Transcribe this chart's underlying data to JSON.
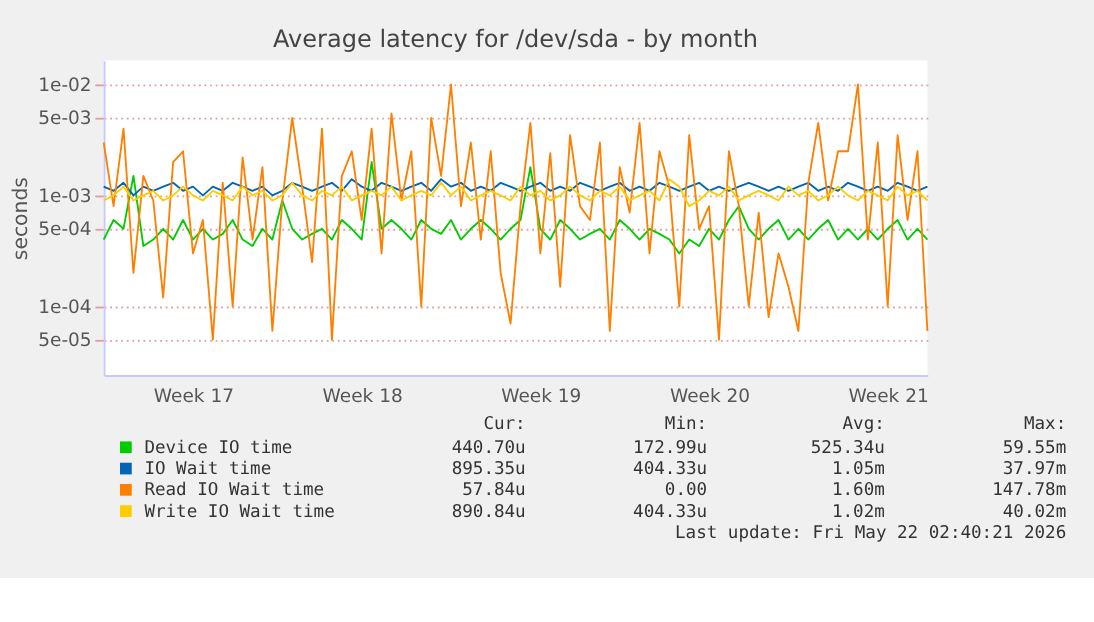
{
  "chart_data": {
    "type": "line",
    "title": "Average latency for /dev/sda - by month",
    "ylabel": "seconds",
    "log": true,
    "grid": "y",
    "legend": "bottom",
    "categories": [
      null,
      null,
      null,
      null,
      null,
      null,
      null,
      null,
      null,
      "Week 17",
      null,
      null,
      null,
      null,
      null,
      null,
      null,
      null,
      null,
      null,
      null,
      null,
      null,
      null,
      null,
      null,
      "Week 18",
      null,
      null,
      null,
      null,
      null,
      null,
      null,
      null,
      null,
      null,
      null,
      null,
      null,
      null,
      null,
      null,
      null,
      "Week 19",
      null,
      null,
      null,
      null,
      null,
      null,
      null,
      null,
      null,
      null,
      null,
      null,
      null,
      null,
      null,
      null,
      "Week 20",
      null,
      null,
      null,
      null,
      null,
      null,
      null,
      null,
      null,
      null,
      null,
      null,
      null,
      null,
      null,
      null,
      null,
      "Week 21",
      null,
      null,
      null,
      null
    ],
    "ylim": [
      2.4e-05,
      0.0165
    ],
    "yticks": [
      {
        "value": 5e-05,
        "label": "5e-05"
      },
      {
        "value": 0.0001,
        "label": "1e-04"
      },
      {
        "value": 0.0005,
        "label": "5e-04"
      },
      {
        "value": 0.001,
        "label": "1e-03"
      },
      {
        "value": 0.005,
        "label": "5e-03"
      },
      {
        "value": 0.01,
        "label": "1e-02"
      }
    ],
    "series": [
      {
        "name": "Device IO time",
        "color": "#00cc00",
        "values": [
          0.0004,
          0.0006,
          0.0005,
          0.0015,
          0.00035,
          0.0004,
          0.0005,
          0.0004,
          0.0006,
          0.0004,
          0.0005,
          0.0004,
          0.00045,
          0.0006,
          0.0004,
          0.00035,
          0.0005,
          0.0004,
          0.0009,
          0.0005,
          0.0004,
          0.00045,
          0.0005,
          0.0004,
          0.0006,
          0.0005,
          0.0004,
          0.002,
          0.0005,
          0.0006,
          0.0005,
          0.0004,
          0.0006,
          0.0005,
          0.00045,
          0.0006,
          0.0004,
          0.0005,
          0.0006,
          0.0005,
          0.0004,
          0.0005,
          0.0006,
          0.0018,
          0.0005,
          0.0004,
          0.0006,
          0.0005,
          0.0004,
          0.00045,
          0.0005,
          0.0004,
          0.0006,
          0.0005,
          0.0004,
          0.0005,
          0.00045,
          0.0004,
          0.0003,
          0.0004,
          0.00035,
          0.0005,
          0.0004,
          0.0006,
          0.0008,
          0.0005,
          0.0004,
          0.0005,
          0.0006,
          0.0004,
          0.0005,
          0.0004,
          0.0005,
          0.0006,
          0.0004,
          0.0005,
          0.0004,
          0.0005,
          0.0004,
          0.0005,
          0.0006,
          0.0004,
          0.0005,
          0.0004
        ]
      },
      {
        "name": "IO Wait time",
        "color": "#0066b3",
        "values": [
          0.0012,
          0.0011,
          0.0013,
          0.001,
          0.0012,
          0.0011,
          0.0012,
          0.0013,
          0.0011,
          0.0012,
          0.001,
          0.0012,
          0.0011,
          0.0013,
          0.0012,
          0.0011,
          0.0012,
          0.001,
          0.0011,
          0.0013,
          0.0012,
          0.0011,
          0.0012,
          0.0013,
          0.0011,
          0.0014,
          0.0012,
          0.0011,
          0.0013,
          0.0012,
          0.0011,
          0.0012,
          0.0013,
          0.0011,
          0.0014,
          0.0012,
          0.0013,
          0.0011,
          0.0012,
          0.0011,
          0.0013,
          0.0012,
          0.0011,
          0.0012,
          0.0013,
          0.0011,
          0.0012,
          0.0011,
          0.0013,
          0.0012,
          0.0011,
          0.0012,
          0.0013,
          0.0011,
          0.0012,
          0.0011,
          0.0013,
          0.0012,
          0.0011,
          0.0012,
          0.0013,
          0.0011,
          0.0012,
          0.0011,
          0.0012,
          0.0013,
          0.0012,
          0.0011,
          0.0012,
          0.0011,
          0.0012,
          0.0013,
          0.0011,
          0.0012,
          0.0011,
          0.0013,
          0.0012,
          0.0011,
          0.0012,
          0.0011,
          0.0013,
          0.0012,
          0.0011,
          0.0012
        ]
      },
      {
        "name": "Read IO Wait time",
        "color": "#ff8000",
        "values": [
          0.003,
          0.0008,
          0.004,
          0.0002,
          0.0015,
          0.0009,
          0.00012,
          0.002,
          0.0025,
          0.0003,
          0.0006,
          5e-05,
          0.0013,
          0.0001,
          0.0022,
          0.0004,
          0.0018,
          6e-05,
          0.0009,
          0.005,
          0.0012,
          0.00025,
          0.004,
          5e-05,
          0.0015,
          0.0025,
          0.0006,
          0.004,
          0.0003,
          0.0055,
          0.0009,
          0.0025,
          0.0001,
          0.005,
          0.0015,
          0.01,
          0.0008,
          0.003,
          0.0004,
          0.0025,
          0.0002,
          7e-05,
          0.0008,
          0.0045,
          0.0003,
          0.0024,
          0.00015,
          0.0035,
          0.0008,
          0.0006,
          0.003,
          6e-05,
          0.0018,
          0.0007,
          0.0045,
          0.0003,
          0.0025,
          0.0012,
          0.0001,
          0.0035,
          0.0005,
          0.0008,
          5e-05,
          0.0025,
          0.0008,
          0.0001,
          0.0007,
          8e-05,
          0.0003,
          0.00015,
          6e-05,
          0.0013,
          0.0045,
          0.0009,
          0.0025,
          0.0025,
          0.01,
          0.0004,
          0.003,
          0.0001,
          0.0035,
          0.0006,
          0.0025,
          6e-05
        ]
      },
      {
        "name": "Write IO Wait time",
        "color": "#ffcc00",
        "values": [
          0.0009,
          0.001,
          0.0012,
          0.0009,
          0.001,
          0.0011,
          0.0009,
          0.001,
          0.0012,
          0.001,
          0.0009,
          0.0011,
          0.001,
          0.0009,
          0.0012,
          0.001,
          0.0011,
          0.0009,
          0.001,
          0.0013,
          0.001,
          0.0009,
          0.0011,
          0.001,
          0.0012,
          0.0009,
          0.001,
          0.0011,
          0.001,
          0.0012,
          0.0009,
          0.001,
          0.0011,
          0.001,
          0.0013,
          0.001,
          0.0012,
          0.0009,
          0.001,
          0.0011,
          0.001,
          0.0009,
          0.0012,
          0.001,
          0.0011,
          0.0009,
          0.001,
          0.0012,
          0.001,
          0.0009,
          0.0011,
          0.001,
          0.0012,
          0.0009,
          0.001,
          0.0011,
          0.0009,
          0.0014,
          0.0012,
          0.0008,
          0.0009,
          0.0011,
          0.001,
          0.0012,
          0.0009,
          0.001,
          0.0011,
          0.001,
          0.0009,
          0.0012,
          0.001,
          0.0011,
          0.0009,
          0.001,
          0.0012,
          0.001,
          0.0009,
          0.0011,
          0.001,
          0.0009,
          0.0012,
          0.001,
          0.0011,
          0.0009
        ]
      }
    ],
    "annotations": [
      "Cur:",
      "Min:",
      "Avg:",
      "Max:",
      "440.70u",
      "172.99u",
      "525.34u",
      "59.55m",
      "895.35u",
      "404.33u",
      "1.05m",
      "37.97m",
      "57.84u",
      "0.00",
      "1.60m",
      "147.78m",
      "890.84u",
      "404.33u",
      "1.02m",
      "40.02m",
      "Last update: Fri May 22 02:40:21 2026"
    ]
  }
}
